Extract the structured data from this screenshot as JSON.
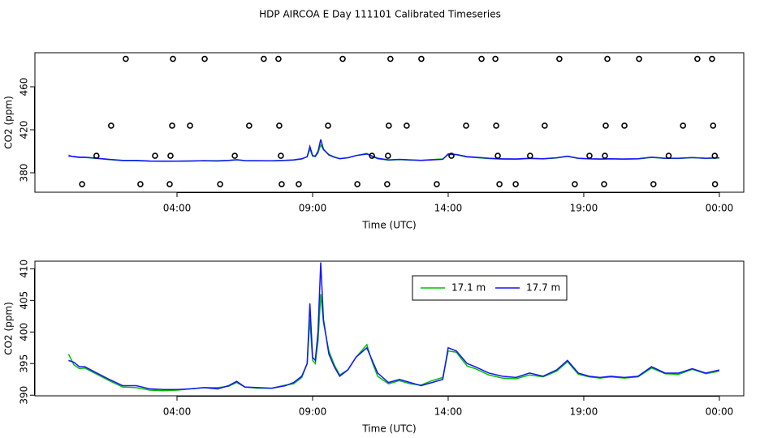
{
  "chart_data": [
    {
      "type": "line",
      "title": "HDP AIRCOA E  Day 111101  Calibrated Timeseries",
      "xlabel": "Time (UTC)",
      "ylabel": "CO2 (ppm)",
      "xlim": [
        -1.24,
        24.9
      ],
      "ylim": [
        361.9,
        491.7
      ],
      "xticks": [
        {
          "value": 4,
          "label": "04:00"
        },
        {
          "value": 9,
          "label": "09:00"
        },
        {
          "value": 14,
          "label": "14:00"
        },
        {
          "value": 19,
          "label": "19:00"
        },
        {
          "value": 24,
          "label": "00:00"
        }
      ],
      "yticks": [
        380,
        420,
        460
      ],
      "x": [
        0,
        0.2,
        0.4,
        0.6,
        1,
        1.5,
        2,
        2.5,
        3,
        3.5,
        4,
        4.5,
        5,
        5.5,
        5.9,
        6.2,
        6.5,
        7,
        7.5,
        8,
        8.3,
        8.6,
        8.8,
        8.9,
        9,
        9.1,
        9.2,
        9.3,
        9.4,
        9.6,
        9.8,
        10,
        10.3,
        10.6,
        11,
        11.2,
        11.4,
        11.8,
        12.2,
        12.6,
        13,
        13.4,
        13.8,
        14,
        14.3,
        14.7,
        15,
        15.5,
        16,
        16.5,
        17,
        17.5,
        18,
        18.4,
        18.8,
        19.2,
        19.6,
        20,
        20.5,
        21,
        21.5,
        22,
        22.5,
        23,
        23.5,
        24
      ],
      "series": [
        {
          "color": "#00c000",
          "values": [
            396.5,
            394.8,
            394.2,
            394.3,
            393.4,
            392.3,
            391.3,
            391.2,
            390.8,
            390.7,
            390.8,
            391.0,
            391.2,
            391.2,
            391.4,
            392.0,
            391.3,
            391.1,
            391.1,
            391.6,
            391.8,
            392.8,
            395.0,
            402.0,
            395.5,
            395.0,
            398.5,
            406.0,
            401.5,
            397.0,
            394.8,
            393.2,
            394.0,
            396.0,
            398.0,
            395.2,
            393.0,
            391.8,
            392.3,
            391.8,
            391.6,
            392.3,
            392.8,
            397.0,
            396.8,
            394.6,
            394.2,
            393.2,
            392.7,
            392.6,
            393.2,
            392.9,
            393.8,
            395.3,
            393.3,
            392.9,
            392.7,
            392.9,
            392.7,
            392.9,
            394.3,
            393.4,
            393.3,
            394.1,
            393.4,
            393.8
          ]
        },
        {
          "color": "#1414ff",
          "values": [
            395.5,
            395.2,
            394.5,
            394.5,
            393.6,
            392.5,
            391.5,
            391.5,
            391.0,
            390.9,
            390.9,
            391.0,
            391.2,
            391.0,
            391.5,
            392.2,
            391.3,
            391.2,
            391.1,
            391.5,
            392.0,
            393.0,
            395.0,
            404.5,
            396.0,
            395.5,
            400.0,
            411.0,
            402.0,
            396.5,
            394.5,
            393.0,
            394.0,
            396.0,
            397.5,
            395.5,
            393.5,
            392.0,
            392.5,
            392.0,
            391.5,
            392.0,
            392.5,
            397.5,
            397.0,
            395.0,
            394.5,
            393.5,
            393.0,
            392.8,
            393.5,
            393.0,
            394.0,
            395.5,
            393.5,
            393.0,
            392.8,
            393.0,
            392.8,
            393.0,
            394.5,
            393.5,
            393.5,
            394.2,
            393.5,
            394.0
          ]
        }
      ],
      "markers": {
        "color": "#000000",
        "x": [
          2.11,
          3.85,
          5.02,
          7.2,
          7.74,
          10.11,
          11.87,
          13.01,
          15.23,
          15.74,
          18.1,
          19.87,
          21.04,
          23.19,
          23.73,
          1.57,
          3.82,
          4.48,
          6.66,
          7.77,
          9.57,
          11.81,
          12.47,
          14.66,
          15.77,
          17.56,
          19.81,
          20.5,
          22.66,
          23.77,
          1.03,
          3.19,
          3.76,
          6.13,
          7.83,
          11.19,
          11.78,
          14.12,
          15.83,
          17.02,
          19.21,
          19.78,
          22.13,
          23.83,
          0.5,
          2.65,
          3.73,
          5.59,
          7.86,
          8.49,
          10.65,
          11.75,
          13.58,
          15.89,
          16.49,
          18.67,
          19.75,
          21.57,
          23.84
        ],
        "values": [
          486,
          486,
          486,
          486,
          486,
          486,
          486,
          486,
          486,
          486,
          486,
          486,
          486,
          486,
          486,
          423.8,
          423.8,
          423.8,
          423.8,
          423.8,
          423.8,
          423.8,
          423.8,
          423.8,
          423.8,
          423.8,
          423.8,
          423.8,
          423.8,
          423.8,
          395.8,
          395.8,
          395.8,
          395.8,
          395.8,
          395.8,
          395.8,
          395.8,
          395.8,
          395.8,
          395.8,
          395.8,
          395.8,
          395.8,
          369.4,
          369.4,
          369.4,
          369.4,
          369.4,
          369.4,
          369.4,
          369.4,
          369.4,
          369.4,
          369.4,
          369.4,
          369.4,
          369.4,
          369.4
        ]
      }
    },
    {
      "type": "line",
      "xlabel": "Time (UTC)",
      "ylabel": "CO2 (ppm)",
      "xlim": [
        -1.24,
        24.9
      ],
      "ylim": [
        389.9,
        411.2
      ],
      "xticks": [
        {
          "value": 4,
          "label": "04:00"
        },
        {
          "value": 9,
          "label": "09:00"
        },
        {
          "value": 14,
          "label": "14:00"
        },
        {
          "value": 19,
          "label": "19:00"
        },
        {
          "value": 24,
          "label": "00:00"
        }
      ],
      "yticks": [
        390,
        395,
        400,
        405,
        410
      ],
      "legend": "top",
      "x": [
        0,
        0.2,
        0.4,
        0.6,
        1,
        1.5,
        2,
        2.5,
        3,
        3.5,
        4,
        4.5,
        5,
        5.5,
        5.9,
        6.2,
        6.5,
        7,
        7.5,
        8,
        8.3,
        8.6,
        8.8,
        8.9,
        9,
        9.1,
        9.2,
        9.3,
        9.4,
        9.6,
        9.8,
        10,
        10.3,
        10.6,
        11,
        11.2,
        11.4,
        11.8,
        12.2,
        12.6,
        13,
        13.4,
        13.8,
        14,
        14.3,
        14.7,
        15,
        15.5,
        16,
        16.5,
        17,
        17.5,
        18,
        18.4,
        18.8,
        19.2,
        19.6,
        20,
        20.5,
        21,
        21.5,
        22,
        22.5,
        23,
        23.5,
        24
      ],
      "series": [
        {
          "name": "17.1 m",
          "color": "#00c000",
          "values": [
            396.5,
            394.8,
            394.2,
            394.3,
            393.4,
            392.3,
            391.3,
            391.2,
            390.8,
            390.7,
            390.8,
            391.0,
            391.2,
            391.2,
            391.4,
            392.0,
            391.3,
            391.1,
            391.1,
            391.6,
            391.8,
            392.8,
            395.0,
            402.0,
            395.5,
            395.0,
            398.5,
            406.0,
            401.5,
            397.0,
            394.8,
            393.2,
            394.0,
            396.0,
            398.0,
            395.2,
            393.0,
            391.8,
            392.3,
            391.8,
            391.6,
            392.3,
            392.8,
            397.0,
            396.8,
            394.6,
            394.2,
            393.2,
            392.7,
            392.6,
            393.2,
            392.9,
            393.8,
            395.3,
            393.3,
            392.9,
            392.7,
            392.9,
            392.7,
            392.9,
            394.3,
            393.4,
            393.3,
            394.1,
            393.4,
            393.8
          ]
        },
        {
          "name": "17.7 m",
          "color": "#1414ff",
          "values": [
            395.5,
            395.2,
            394.5,
            394.5,
            393.6,
            392.5,
            391.5,
            391.5,
            391.0,
            390.9,
            390.9,
            391.0,
            391.2,
            391.0,
            391.5,
            392.2,
            391.3,
            391.2,
            391.1,
            391.5,
            392.0,
            393.0,
            395.0,
            404.5,
            396.0,
            395.5,
            400.0,
            411.0,
            402.0,
            396.5,
            394.5,
            393.0,
            394.0,
            396.0,
            397.5,
            395.5,
            393.5,
            392.0,
            392.5,
            392.0,
            391.5,
            392.0,
            392.5,
            397.5,
            397.0,
            395.0,
            394.5,
            393.5,
            393.0,
            392.8,
            393.5,
            393.0,
            394.0,
            395.5,
            393.5,
            393.0,
            392.8,
            393.0,
            392.8,
            393.0,
            394.5,
            393.5,
            393.5,
            394.2,
            393.5,
            394.0
          ]
        }
      ]
    }
  ]
}
